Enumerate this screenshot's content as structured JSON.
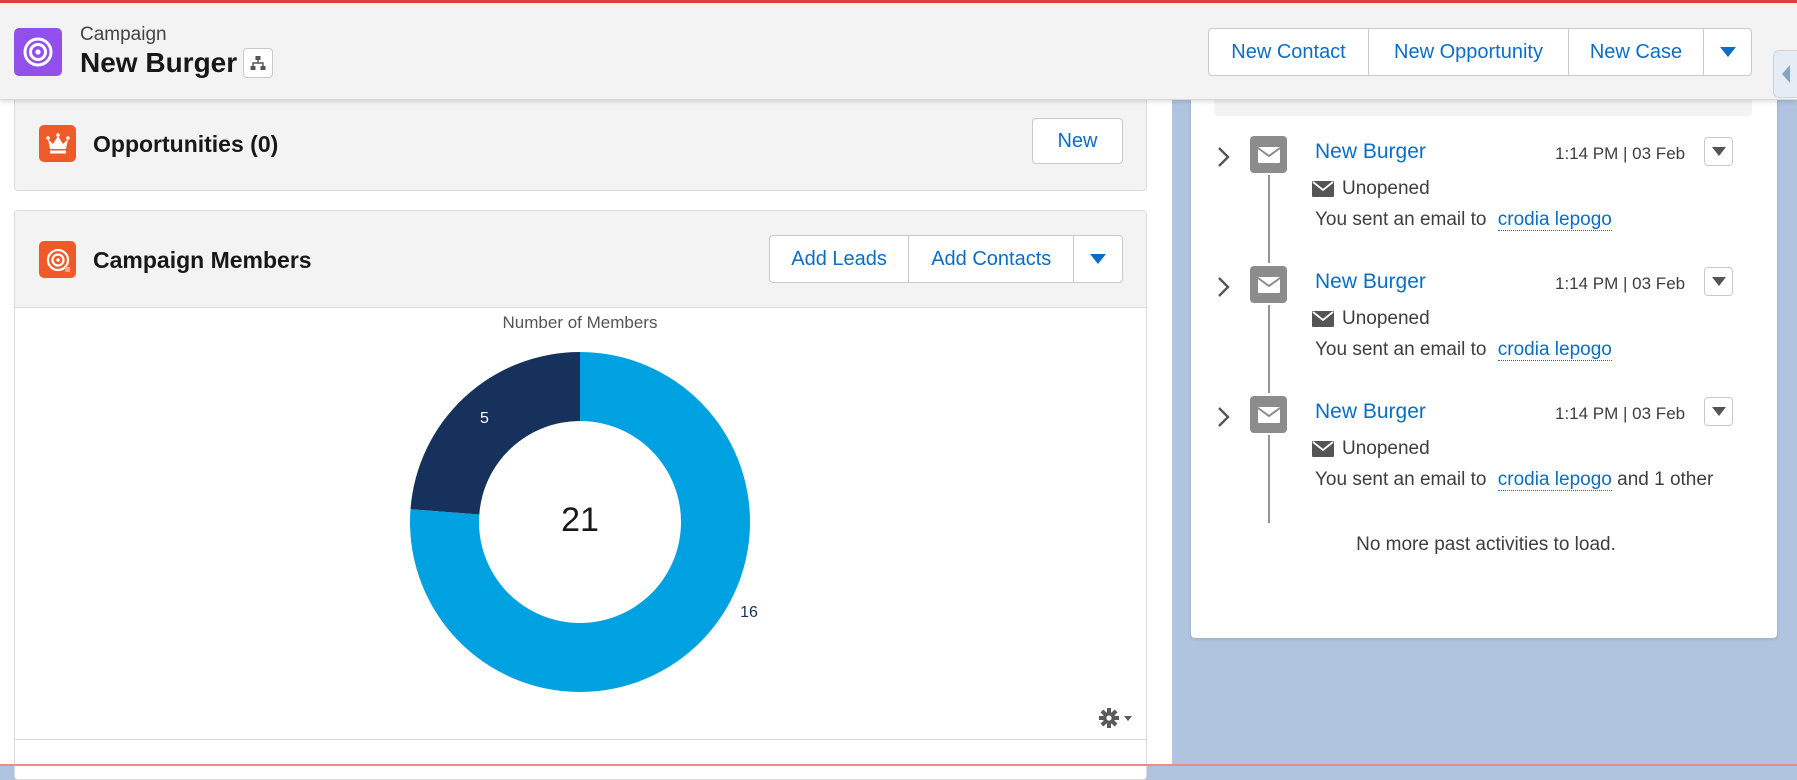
{
  "header": {
    "object_type": "Campaign",
    "record_name": "New Burger",
    "actions": [
      "New Contact",
      "New Opportunity",
      "New Case"
    ]
  },
  "opportunities": {
    "title": "Opportunities (0)",
    "new_label": "New"
  },
  "campaign_members": {
    "title": "Campaign Members",
    "add_leads_label": "Add Leads",
    "add_contacts_label": "Add Contacts"
  },
  "chart_data": {
    "type": "pie",
    "title": "Number of Members",
    "center_label": "21",
    "slices": [
      {
        "label": "5",
        "value": 5,
        "color": "#16325c"
      },
      {
        "label": "16",
        "value": 16,
        "color": "#00a1e0"
      }
    ]
  },
  "activity": {
    "items": [
      {
        "subject": "New Burger",
        "time": "1:14 PM | 03 Feb",
        "status": "Unopened",
        "desc_prefix": "You sent an email to",
        "recipient": "crodia lepogo",
        "suffix": ""
      },
      {
        "subject": "New Burger",
        "time": "1:14 PM | 03 Feb",
        "status": "Unopened",
        "desc_prefix": "You sent an email to",
        "recipient": "crodia lepogo",
        "suffix": ""
      },
      {
        "subject": "New Burger",
        "time": "1:14 PM | 03 Feb",
        "status": "Unopened",
        "desc_prefix": "You sent an email to",
        "recipient": "crodia lepogo",
        "suffix": "and 1 other"
      }
    ],
    "no_more_text": "No more past activities to load."
  },
  "colors": {
    "campaign_icon": "#9050e9",
    "card_icon": "#f05a28",
    "link": "#0b6ec5",
    "page_bg": "#b0c4df"
  },
  "icons": {
    "campaign": "target-icon",
    "opportunities": "crown-icon",
    "members": "target-icon",
    "activity": "email-icon"
  }
}
